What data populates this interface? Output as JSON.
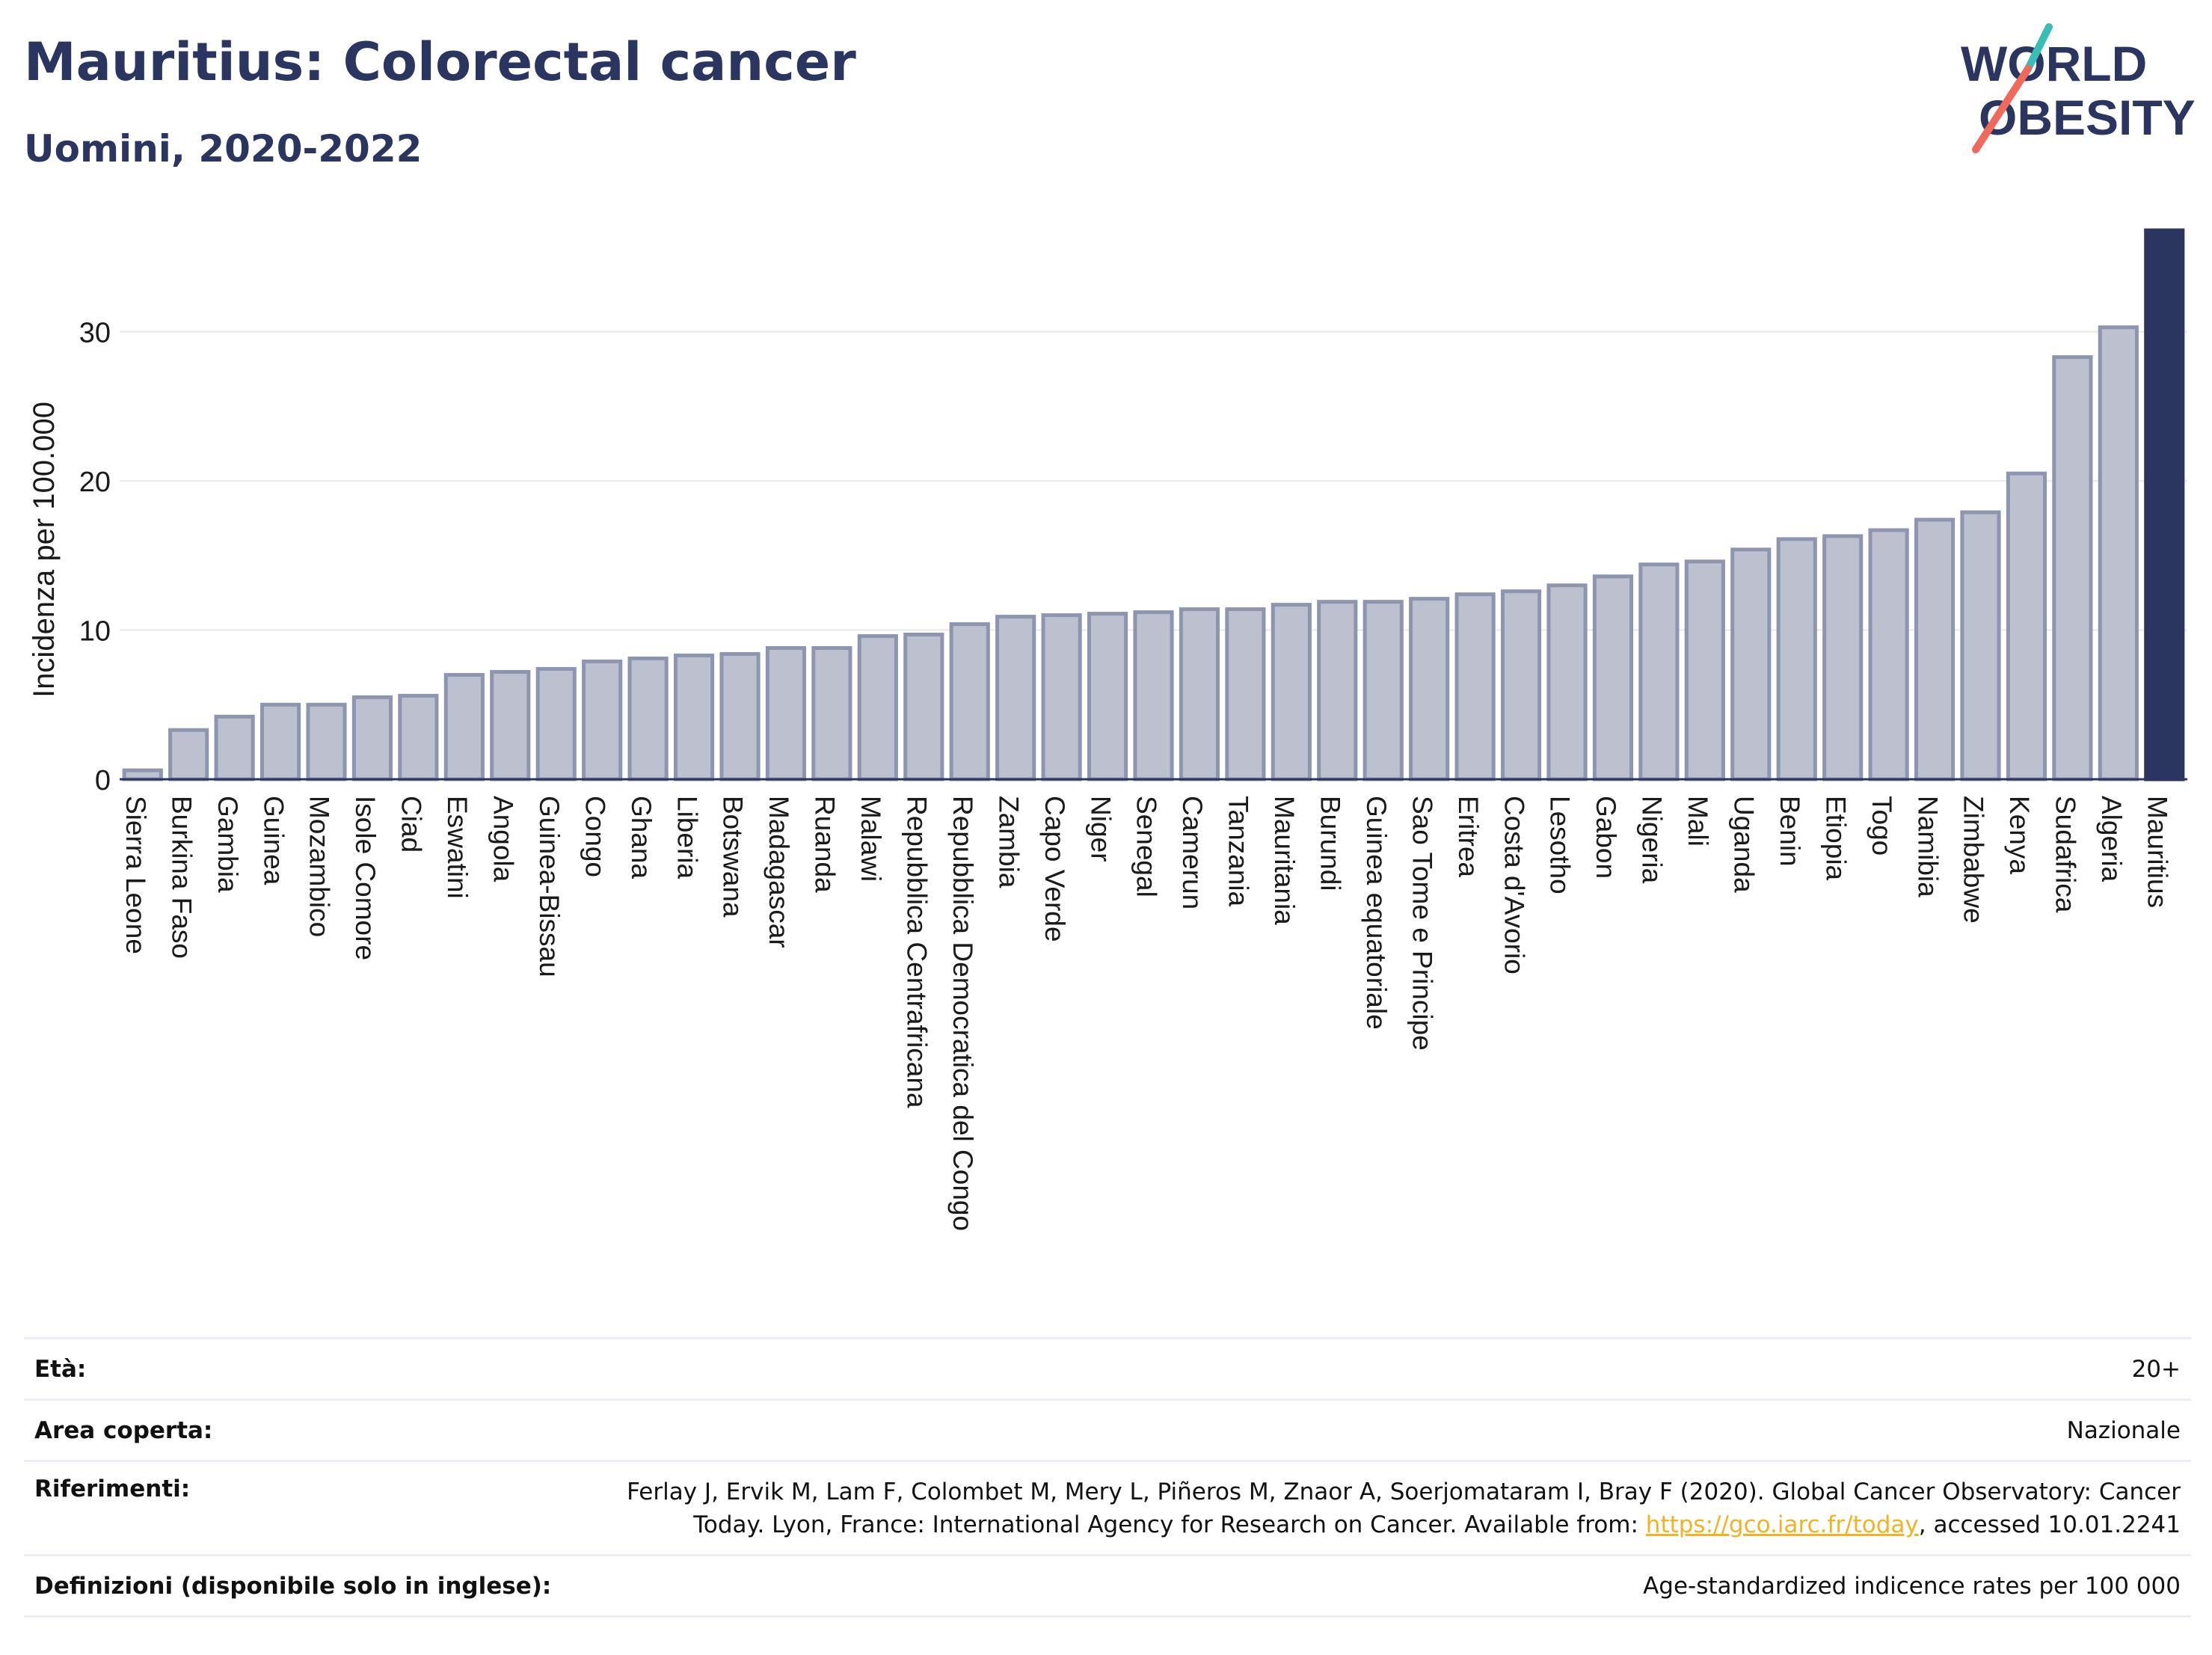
{
  "header": {
    "title": "Mauritius: Colorectal cancer",
    "subtitle": "Uomini, 2020-2022"
  },
  "logo": {
    "line1": "WORLD",
    "line2": "OBESITY"
  },
  "colors": {
    "navy": "#2a3560",
    "bar_fill": "#bcc0cf",
    "bar_stroke": "#8e95ae",
    "highlight": "#2a3560",
    "logo_teal": "#3bbdb7",
    "logo_coral": "#ef6a5b",
    "link": "#f0b323"
  },
  "chart_data": {
    "type": "bar",
    "ylabel": "Incidenza per 100.000",
    "ylim": [
      0,
      36.8
    ],
    "yticks": [
      0,
      10,
      20,
      30
    ],
    "grid": true,
    "highlight": "Mauritius",
    "categories": [
      "Sierra Leone",
      "Burkina Faso",
      "Gambia",
      "Guinea",
      "Mozambico",
      "Isole Comore",
      "Ciad",
      "Eswatini",
      "Angola",
      "Guinea-Bissau",
      "Congo",
      "Ghana",
      "Liberia",
      "Botswana",
      "Madagascar",
      "Ruanda",
      "Malawi",
      "Repubblica Centrafricana",
      "Repubblica Democratica del Congo",
      "Zambia",
      "Capo Verde",
      "Niger",
      "Senegal",
      "Camerun",
      "Tanzania",
      "Mauritania",
      "Burundi",
      "Guinea equatoriale",
      "Sao Tome e Principe",
      "Eritrea",
      "Costa d'Avorio",
      "Lesotho",
      "Gabon",
      "Nigeria",
      "Mali",
      "Uganda",
      "Benin",
      "Etiopia",
      "Togo",
      "Namibia",
      "Zimbabwe",
      "Kenya",
      "Sudafrica",
      "Algeria",
      "Mauritius"
    ],
    "values": [
      0.6,
      3.3,
      4.2,
      5.0,
      5.0,
      5.5,
      5.6,
      7.0,
      7.2,
      7.4,
      7.9,
      8.1,
      8.3,
      8.4,
      8.8,
      8.8,
      9.6,
      9.7,
      10.4,
      10.9,
      11.0,
      11.1,
      11.2,
      11.4,
      11.4,
      11.7,
      11.9,
      11.9,
      12.1,
      12.4,
      12.6,
      13.0,
      13.6,
      14.4,
      14.6,
      15.4,
      16.1,
      16.3,
      16.7,
      17.4,
      17.9,
      20.5,
      28.3,
      30.3,
      36.8
    ]
  },
  "info": {
    "age_label": "Età:",
    "age_value": "20+",
    "area_label": "Area coperta:",
    "area_value": "Nazionale",
    "ref_label": "Riferimenti:",
    "ref_text": "Ferlay J, Ervik M, Lam F, Colombet M, Mery L, Piñeros M, Znaor A, Soerjomataram I, Bray F (2020). Global Cancer Observatory: Cancer Today. Lyon, France: International Agency for Research on Cancer. Available from:",
    "ref_link": "https://gco.iarc.fr/today",
    "ref_after": ", accessed 10.01.2241",
    "def_label": "Definizioni (disponibile solo in inglese):",
    "def_value": "Age-standardized indicence rates per 100 000"
  }
}
